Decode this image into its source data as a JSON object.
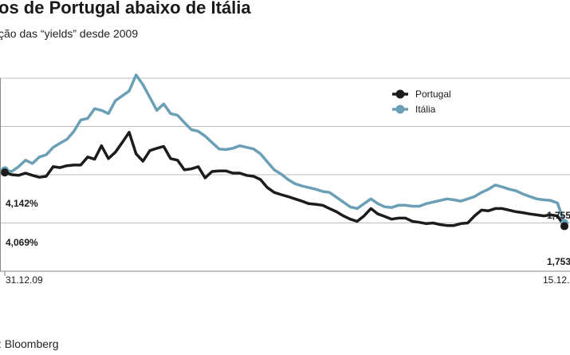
{
  "header": {
    "title": "os de Portugal abaixo de Itália",
    "subtitle": "ção das “yields” desde 2009"
  },
  "footer": {
    "source": ": Bloomberg"
  },
  "chart_data": {
    "type": "line",
    "ylim": [
      0.5,
      7.5
    ],
    "gridlines": [
      1.0,
      2.5,
      4.0,
      5.5,
      7.0
    ],
    "grid": true,
    "legend_position": "top-right",
    "x_ticks": [
      "31.12.09",
      "15.12."
    ],
    "series": [
      {
        "name": "Portugal",
        "color": "#1c1c1c",
        "start_label": "4,069%",
        "end_label": "1,753",
        "values": [
          4.07,
          4.0,
          3.98,
          4.05,
          3.98,
          3.92,
          3.95,
          4.25,
          4.22,
          4.28,
          4.3,
          4.3,
          4.55,
          4.48,
          4.9,
          4.5,
          4.7,
          5.0,
          5.32,
          4.65,
          4.42,
          4.75,
          4.82,
          4.88,
          4.5,
          4.45,
          4.15,
          4.18,
          4.25,
          3.9,
          4.1,
          4.12,
          4.12,
          4.05,
          4.05,
          3.98,
          3.95,
          3.85,
          3.6,
          3.45,
          3.38,
          3.32,
          3.25,
          3.18,
          3.1,
          3.08,
          3.05,
          2.95,
          2.85,
          2.72,
          2.62,
          2.55,
          2.72,
          2.95,
          2.78,
          2.7,
          2.62,
          2.65,
          2.65,
          2.55,
          2.52,
          2.48,
          2.5,
          2.45,
          2.42,
          2.42,
          2.48,
          2.5,
          2.72,
          2.9,
          2.88,
          2.95,
          2.95,
          2.9,
          2.85,
          2.82,
          2.78,
          2.75,
          2.72,
          2.75,
          2.72,
          1.75
        ]
      },
      {
        "name": "Itália",
        "color": "#6a9fb5",
        "start_label": "4,142%",
        "end_label": "1,755",
        "values": [
          4.14,
          4.1,
          4.25,
          4.45,
          4.35,
          4.55,
          4.62,
          4.85,
          4.98,
          5.1,
          5.35,
          5.7,
          5.75,
          6.05,
          6.0,
          5.9,
          6.3,
          6.45,
          6.6,
          7.1,
          6.8,
          6.4,
          6.0,
          6.2,
          5.9,
          5.85,
          5.62,
          5.4,
          5.35,
          5.2,
          5.0,
          4.8,
          4.78,
          4.82,
          4.9,
          4.85,
          4.8,
          4.65,
          4.4,
          4.15,
          4.02,
          3.85,
          3.72,
          3.65,
          3.6,
          3.55,
          3.48,
          3.45,
          3.3,
          3.15,
          3.0,
          2.95,
          3.1,
          3.25,
          3.1,
          3.0,
          2.98,
          3.05,
          3.05,
          3.02,
          3.02,
          3.1,
          3.15,
          3.2,
          3.25,
          3.22,
          3.18,
          3.25,
          3.32,
          3.45,
          3.55,
          3.68,
          3.62,
          3.55,
          3.5,
          3.4,
          3.32,
          3.25,
          3.22,
          3.2,
          3.12,
          1.755
        ]
      }
    ]
  }
}
